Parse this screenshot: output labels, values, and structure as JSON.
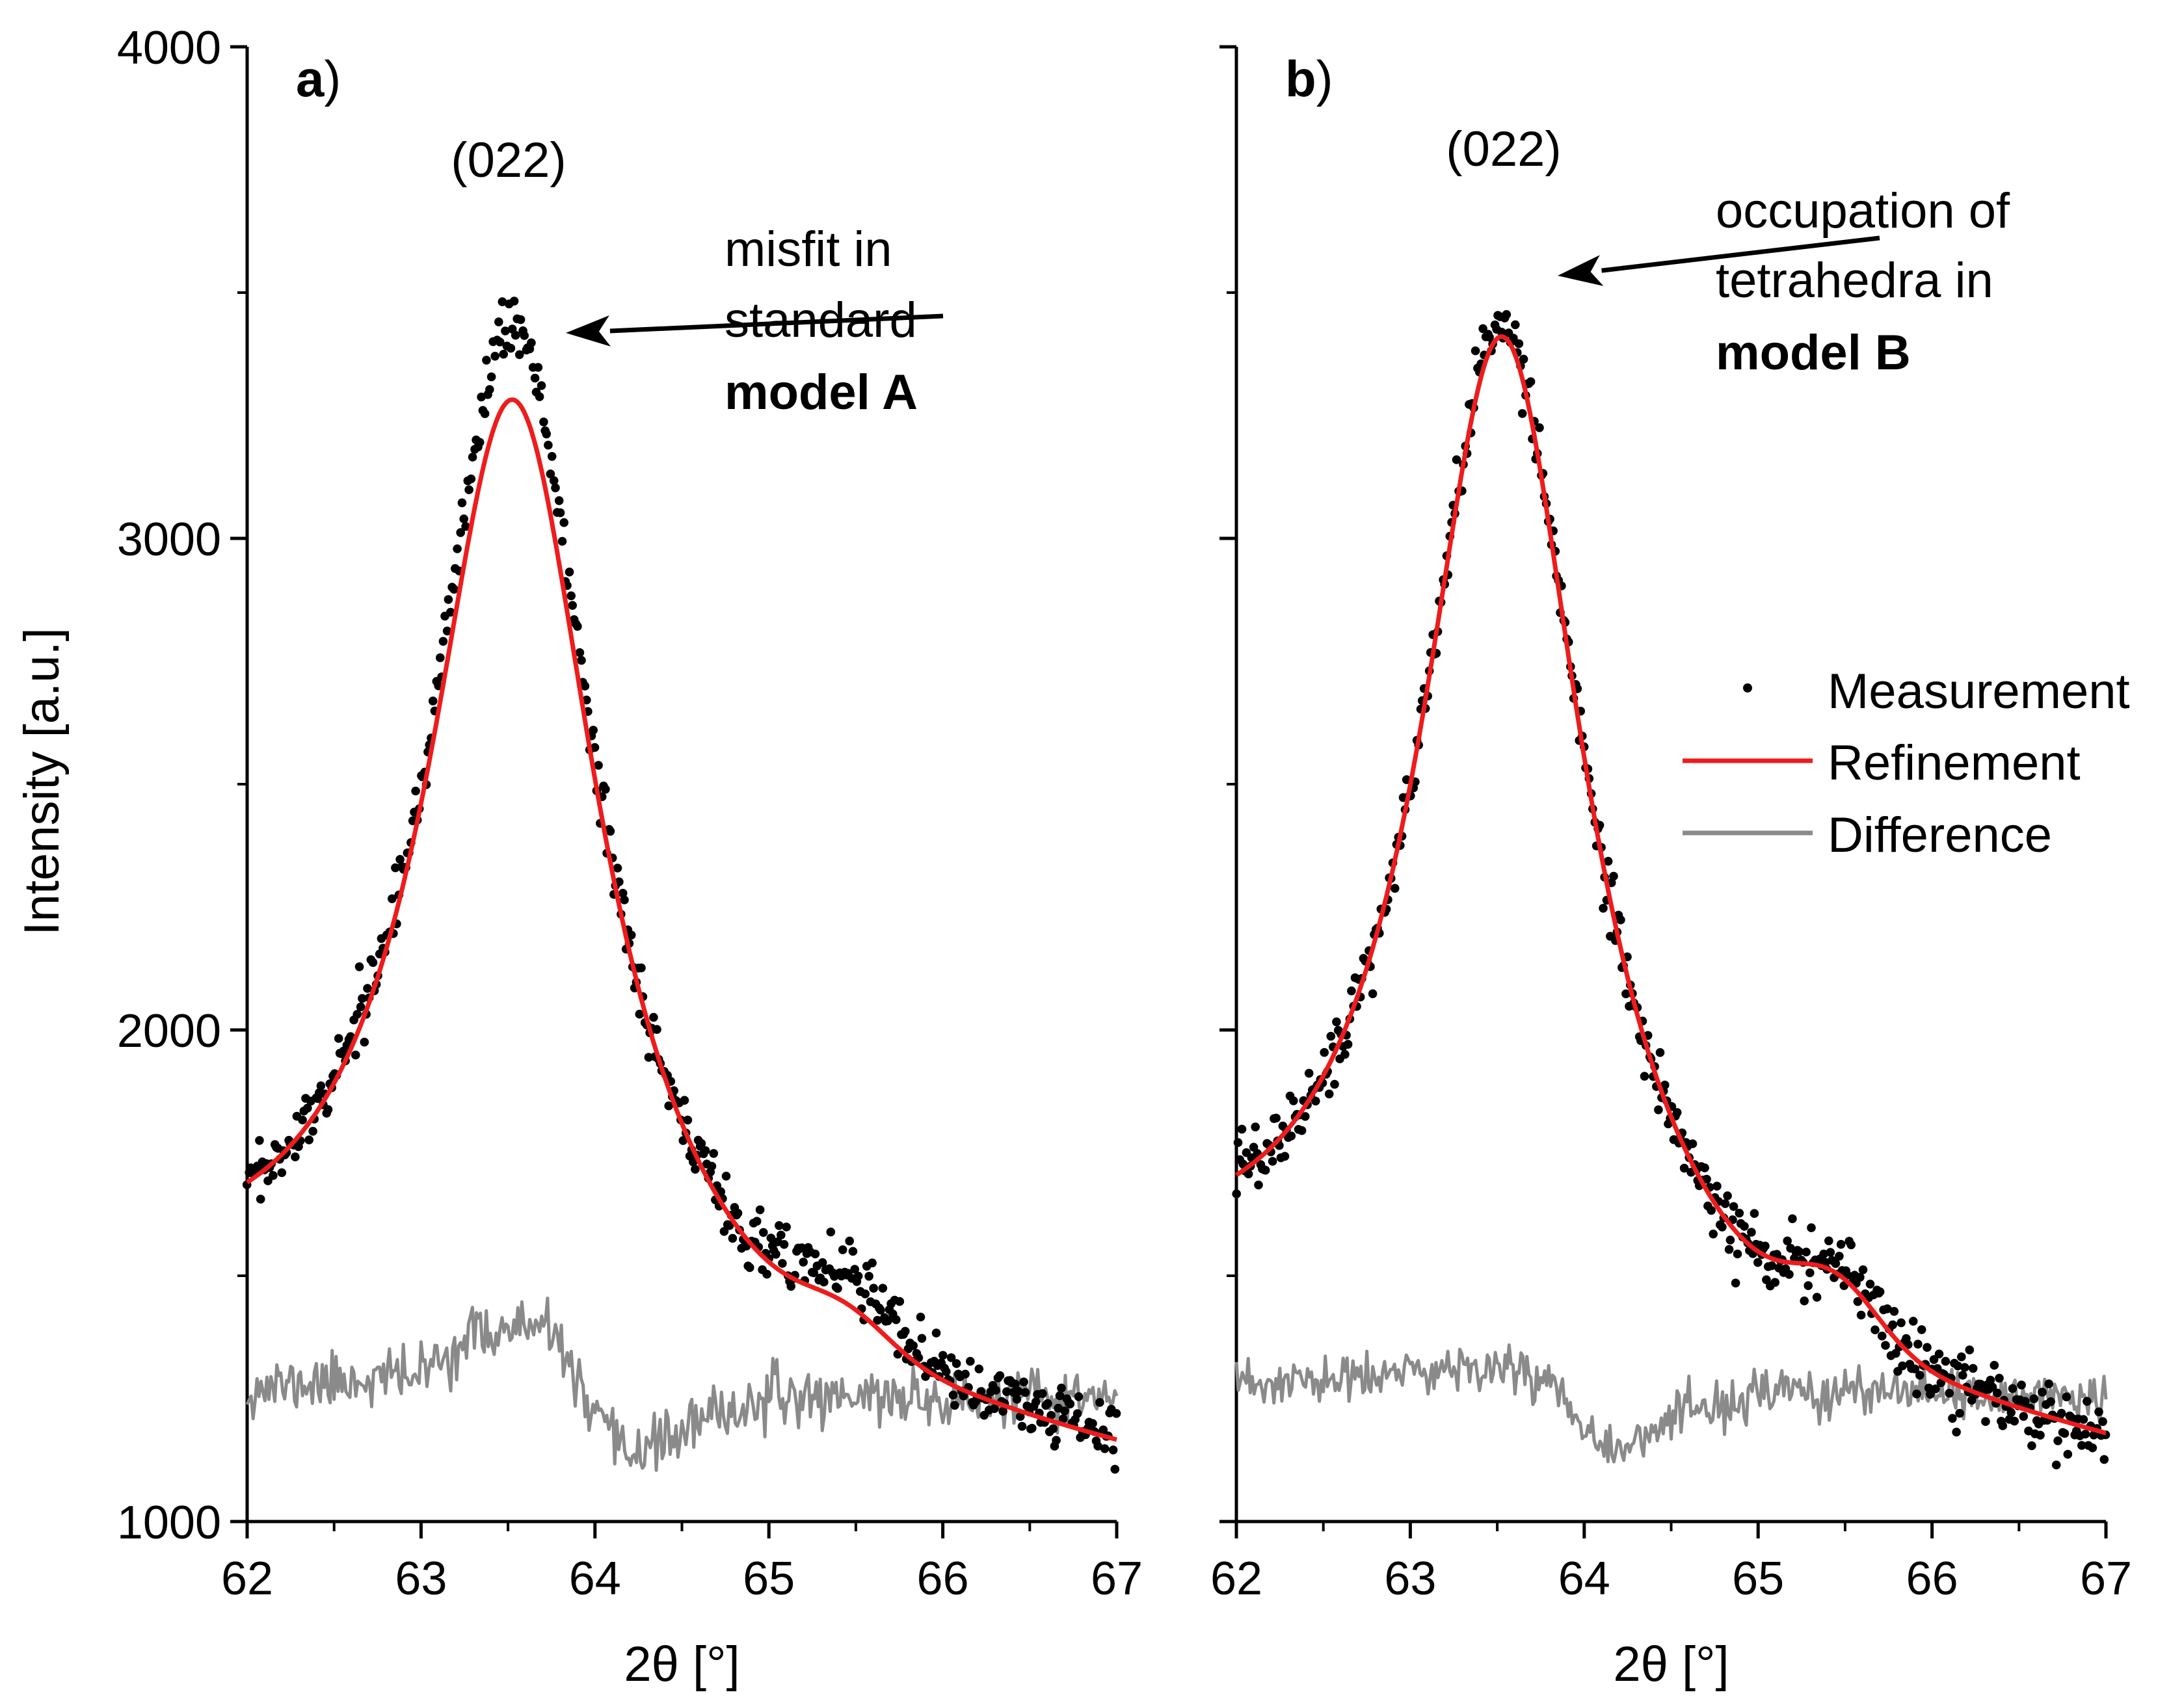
{
  "shared": {
    "ylabel": "Intensity [a.u.]",
    "xlabel": "2θ [°]",
    "x_ticks": [
      "62",
      "63",
      "64",
      "65",
      "66",
      "67"
    ],
    "y_ticks": [
      "1000",
      "2000",
      "3000",
      "4000"
    ],
    "legend": {
      "measurement": "Measurement",
      "refinement": "Refinement",
      "difference": "Difference"
    },
    "colors": {
      "measurement": "#000000",
      "refinement": "#ee1c1c",
      "difference": "#8a8a8a"
    }
  },
  "chart_data": [
    {
      "type": "scatter",
      "panel_label": "a",
      "panel_paren": ")",
      "peak_label": "(022)",
      "annotation": {
        "lines": [
          "misfit in",
          "standard"
        ],
        "bold": "model A"
      },
      "xlim": [
        62,
        67
      ],
      "ylim": [
        1000,
        4000
      ],
      "xlabel": "2θ [°]",
      "ylabel": "Intensity [a.u.]",
      "measurement_model": {
        "background": [
          1450,
          -65
        ],
        "peak_center": 63.53,
        "peak_amplitude": 2080,
        "peak_hwhm": 0.57,
        "shoulder": {
          "center": 65.45,
          "amplitude": 120,
          "width": 0.35
        },
        "noise_std": 32
      },
      "refinement_model": {
        "background": [
          1430,
          -64
        ],
        "peak_center": 63.53,
        "peak_amplitude": 1950,
        "peak_hwhm": 0.6,
        "shoulder": {
          "center": 65.45,
          "amplitude": 60,
          "width": 0.35
        }
      },
      "difference": {
        "points": [
          [
            62.0,
            1270
          ],
          [
            62.5,
            1285
          ],
          [
            63.0,
            1300
          ],
          [
            63.3,
            1380
          ],
          [
            63.6,
            1395
          ],
          [
            63.8,
            1370
          ],
          [
            63.95,
            1230
          ],
          [
            64.15,
            1140
          ],
          [
            64.4,
            1165
          ],
          [
            64.7,
            1215
          ],
          [
            65.0,
            1250
          ],
          [
            65.5,
            1260
          ],
          [
            66.0,
            1245
          ],
          [
            66.5,
            1250
          ],
          [
            67.0,
            1250
          ]
        ],
        "noise_std": 28
      }
    },
    {
      "type": "scatter",
      "panel_label": "b",
      "panel_paren": ")",
      "peak_label": "(022)",
      "annotation": {
        "lines": [
          "occupation of",
          "tetrahedra in"
        ],
        "bold": "model B"
      },
      "xlim": [
        62,
        67
      ],
      "ylim": [
        1000,
        4000
      ],
      "xlabel": "2θ [°]",
      "ylabel": "Intensity [a.u.]",
      "measurement_model": {
        "background": [
          1450,
          -65
        ],
        "peak_center": 63.53,
        "peak_amplitude": 2080,
        "peak_hwhm": 0.57,
        "shoulder": {
          "center": 65.45,
          "amplitude": 120,
          "width": 0.35
        },
        "noise_std": 32
      },
      "refinement_model": {
        "background": [
          1450,
          -65
        ],
        "peak_center": 63.53,
        "peak_amplitude": 2060,
        "peak_hwhm": 0.575,
        "shoulder": {
          "center": 65.45,
          "amplitude": 110,
          "width": 0.35
        }
      },
      "difference": {
        "points": [
          [
            62.0,
            1275
          ],
          [
            62.5,
            1285
          ],
          [
            63.0,
            1300
          ],
          [
            63.4,
            1320
          ],
          [
            63.75,
            1300
          ],
          [
            63.95,
            1225
          ],
          [
            64.15,
            1150
          ],
          [
            64.4,
            1180
          ],
          [
            64.7,
            1230
          ],
          [
            65.0,
            1255
          ],
          [
            65.5,
            1265
          ],
          [
            66.0,
            1250
          ],
          [
            66.5,
            1255
          ],
          [
            67.0,
            1260
          ]
        ],
        "noise_std": 25
      }
    }
  ]
}
